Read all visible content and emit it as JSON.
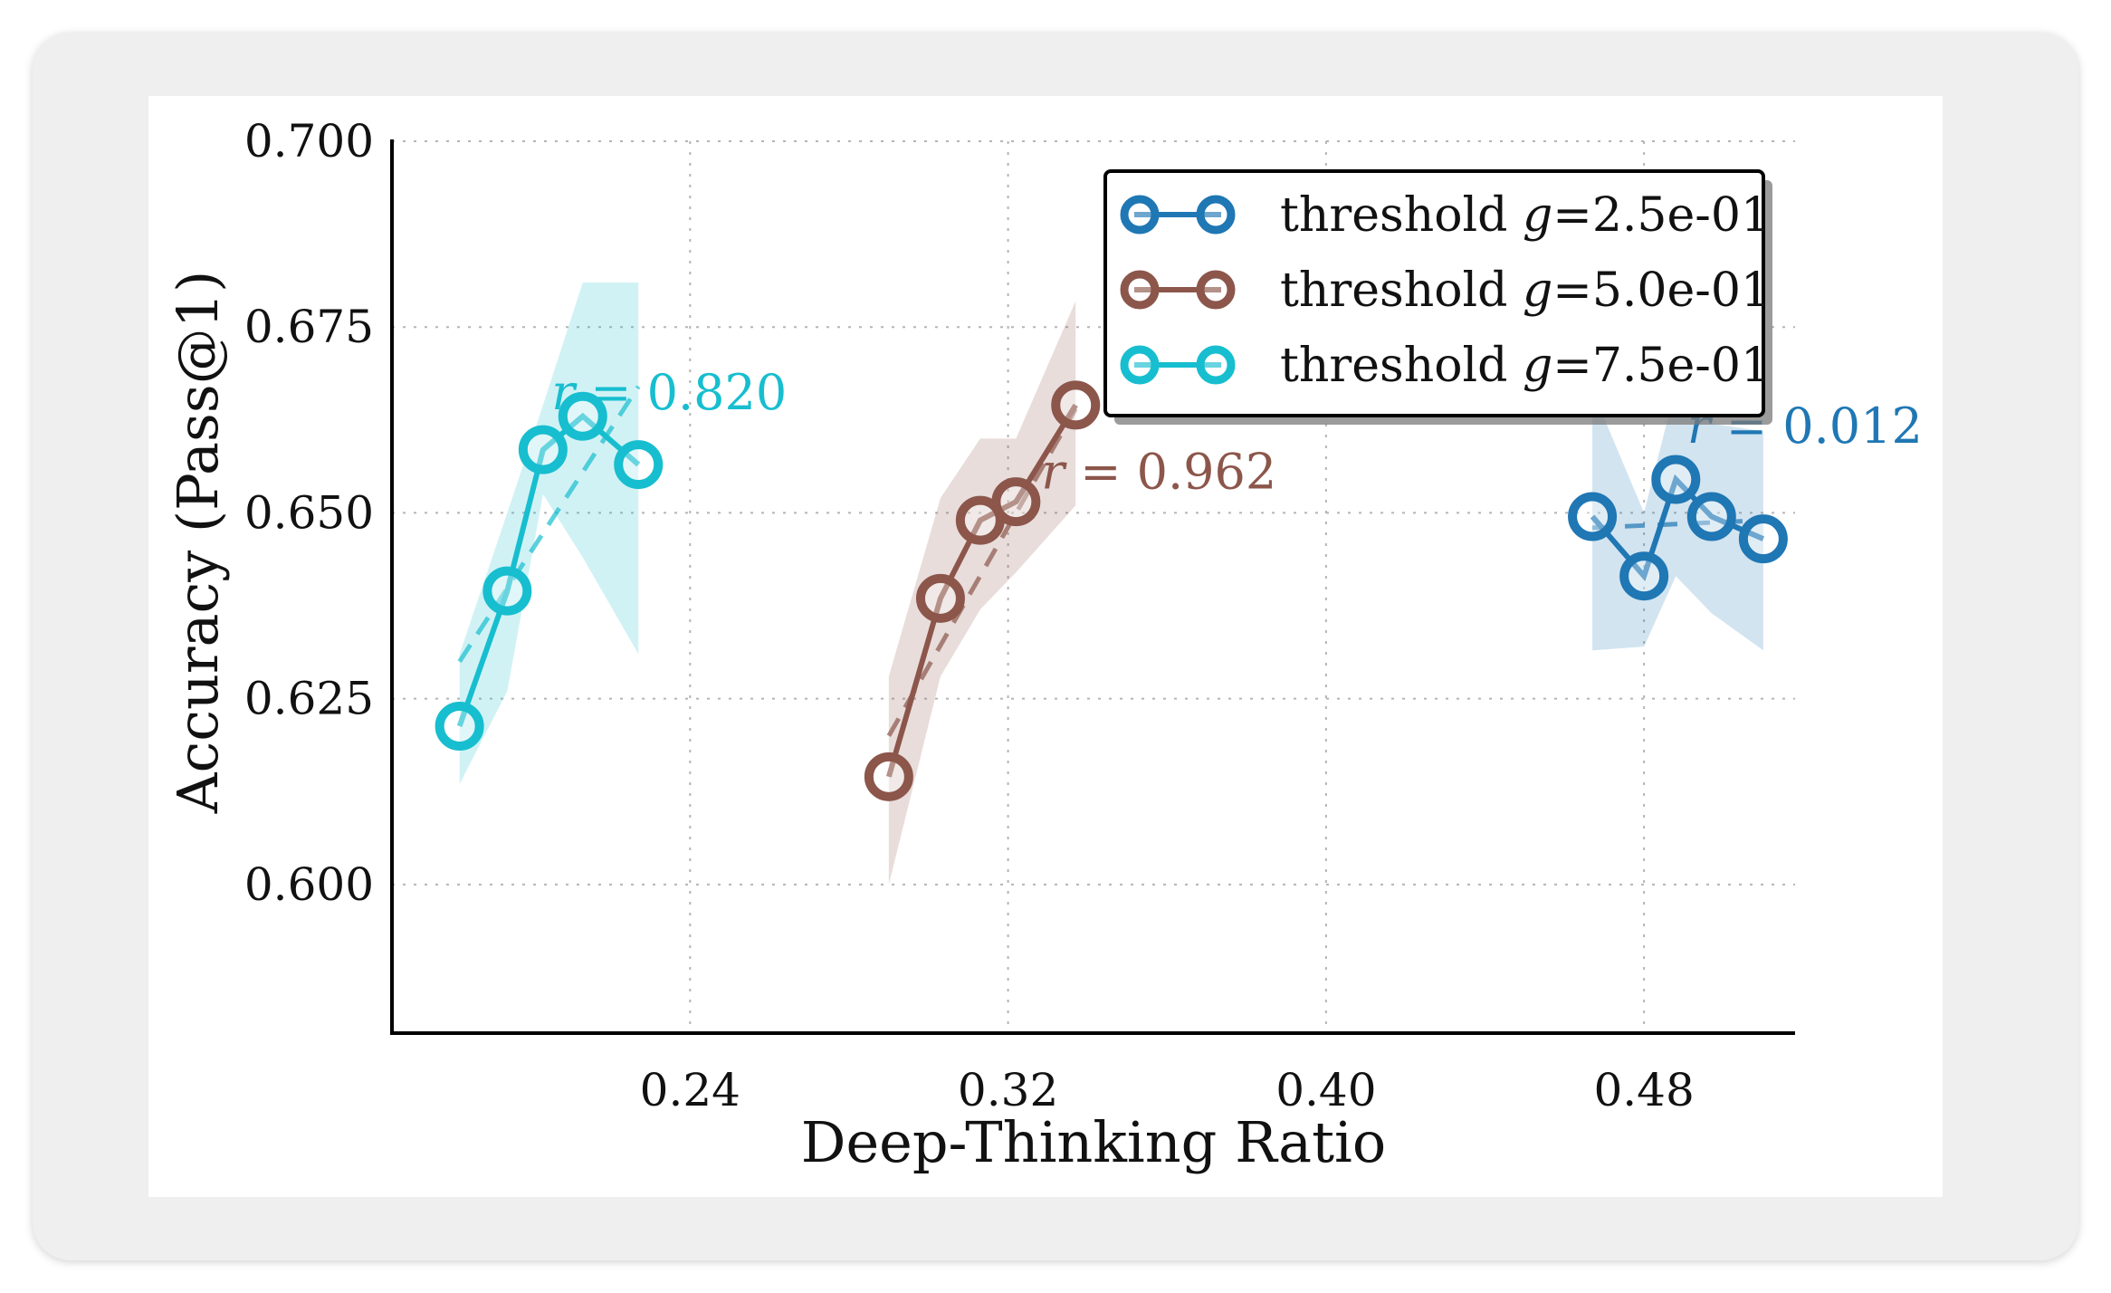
{
  "chart_data": {
    "type": "line",
    "xlabel": "Deep-Thinking Ratio",
    "ylabel": "Accuracy (Pass@1)",
    "xlim": [
      0.165,
      0.518
    ],
    "ylim": [
      0.58,
      0.7
    ],
    "grid": true,
    "legend_position": "top-right",
    "xticks": [
      0.24,
      0.32,
      0.4,
      0.48
    ],
    "xtick_labels": [
      "0.24",
      "0.32",
      "0.40",
      "0.48"
    ],
    "yticks": [
      0.6,
      0.625,
      0.65,
      0.675,
      0.7
    ],
    "ytick_labels": [
      "0.600",
      "0.625",
      "0.650",
      "0.675",
      "0.700"
    ],
    "series": [
      {
        "name": "threshold g=2.5e-01",
        "legend_prefix": "threshold ",
        "legend_var": "g",
        "legend_value": "=2.5e-01",
        "color": "#1f77b4",
        "x": [
          0.467,
          0.48,
          0.488,
          0.497,
          0.51
        ],
        "y": [
          0.6495,
          0.6415,
          0.6545,
          0.6495,
          0.6465
        ],
        "band_low": [
          0.6315,
          0.632,
          0.6415,
          0.6365,
          0.6315
        ],
        "band_high": [
          0.6665,
          0.65,
          0.667,
          0.662,
          0.661
        ],
        "fit": [
          [
            0.467,
            0.648
          ],
          [
            0.51,
            0.649
          ]
        ],
        "annotation_var": "r",
        "annotation_value": " = 0.012"
      },
      {
        "name": "threshold g=5.0e-01",
        "legend_prefix": "threshold ",
        "legend_var": "g",
        "legend_value": "=5.0e-01",
        "color": "#8c564b",
        "x": [
          0.29,
          0.303,
          0.313,
          0.322,
          0.337
        ],
        "y": [
          0.6145,
          0.6385,
          0.649,
          0.6515,
          0.6645
        ],
        "band_low": [
          0.6,
          0.628,
          0.637,
          0.642,
          0.651
        ],
        "band_high": [
          0.628,
          0.652,
          0.66,
          0.66,
          0.6785
        ],
        "fit": [
          [
            0.29,
            0.62
          ],
          [
            0.337,
            0.664
          ]
        ],
        "annotation_var": "r",
        "annotation_value": " = 0.962"
      },
      {
        "name": "threshold g=7.5e-01",
        "legend_prefix": "threshold ",
        "legend_var": "g",
        "legend_value": "=7.5e-01",
        "color": "#17becf",
        "x": [
          0.182,
          0.194,
          0.203,
          0.213,
          0.227
        ],
        "y": [
          0.6213,
          0.6395,
          0.6585,
          0.663,
          0.6565
        ],
        "band_low": [
          0.6135,
          0.626,
          0.6525,
          0.644,
          0.631
        ],
        "band_high": [
          0.631,
          0.65,
          0.6645,
          0.681,
          0.681
        ],
        "fit": [
          [
            0.182,
            0.63
          ],
          [
            0.227,
            0.667
          ]
        ],
        "annotation_var": "r",
        "annotation_value": " = 0.820"
      }
    ]
  }
}
